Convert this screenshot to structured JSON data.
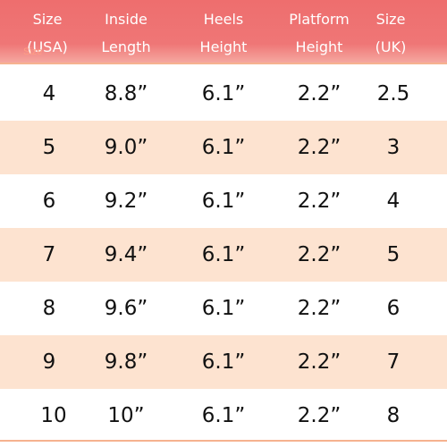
{
  "headers": [
    {
      "line1": "Size",
      "line2": "(USA)"
    },
    {
      "line1": "Inside",
      "line2": "Length"
    },
    {
      "line1": "Heels",
      "line2": "Height"
    },
    {
      "line1": "Platform",
      "line2": "Height"
    },
    {
      "line1": "Size",
      "line2": "(UK)"
    }
  ],
  "ghost_text": "Size",
  "rows": [
    [
      "4",
      "8.8”",
      "6.1”",
      "2.2”",
      "2.5"
    ],
    [
      "5",
      "9.0”",
      "6.1”",
      "2.2”",
      "3"
    ],
    [
      "6",
      "9.2”",
      "6.1”",
      "2.2”",
      "4"
    ],
    [
      "7",
      "9.4”",
      "6.1”",
      "2.2”",
      "5"
    ],
    [
      "8",
      "9.6”",
      "6.1”",
      "2.2”",
      "6"
    ],
    [
      "9",
      "9.8”",
      "6.1”",
      "2.2”",
      "7"
    ],
    [
      "10",
      "10”",
      "6.1”",
      "2.2”",
      "8"
    ]
  ],
  "colors": {
    "header_bg": "#ee6e6e",
    "alt_row_bg": "#fde3d0",
    "rule": "#f6b28f",
    "header_text": "#ffffff"
  }
}
